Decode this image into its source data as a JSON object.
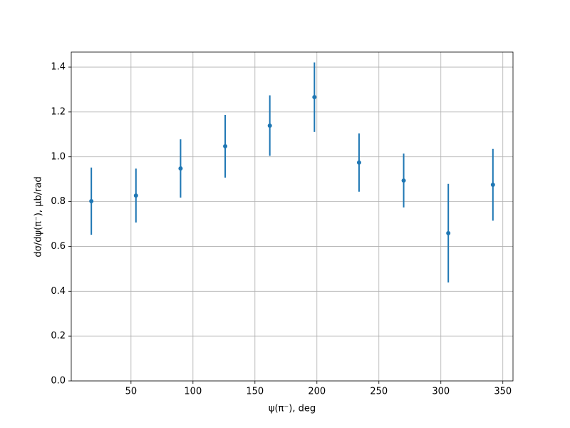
{
  "chart_data": {
    "type": "errorbar",
    "x_label": "ψ(π⁻), deg",
    "y_label": "dσ/dψ(π⁻), μb/rad",
    "x": [
      18,
      54,
      90,
      126,
      162,
      198,
      234,
      270,
      306,
      342
    ],
    "series": [
      {
        "color": "#1f77b4",
        "values": [
          0.802,
          0.827,
          0.948,
          1.047,
          1.139,
          1.266,
          0.974,
          0.894,
          0.659,
          0.875
        ],
        "errors": [
          0.15,
          0.12,
          0.13,
          0.14,
          0.135,
          0.155,
          0.13,
          0.12,
          0.22,
          0.16
        ]
      }
    ],
    "xlim": [
      1.8,
      358.2
    ],
    "ylim": [
      0,
      1.467
    ],
    "xticks": [
      50,
      100,
      150,
      200,
      250,
      300,
      350
    ],
    "yticks": [
      {
        "value": 0,
        "label": "0.0"
      },
      {
        "value": 0.2,
        "label": "0.2"
      },
      {
        "value": 0.4,
        "label": "0.4"
      },
      {
        "value": 0.6,
        "label": "0.6"
      },
      {
        "value": 0.8,
        "label": "0.8"
      },
      {
        "value": 1.0,
        "label": "1.0"
      },
      {
        "value": 1.2,
        "label": "1.2"
      },
      {
        "value": 1.4,
        "label": "1.4"
      }
    ],
    "grid": true
  }
}
